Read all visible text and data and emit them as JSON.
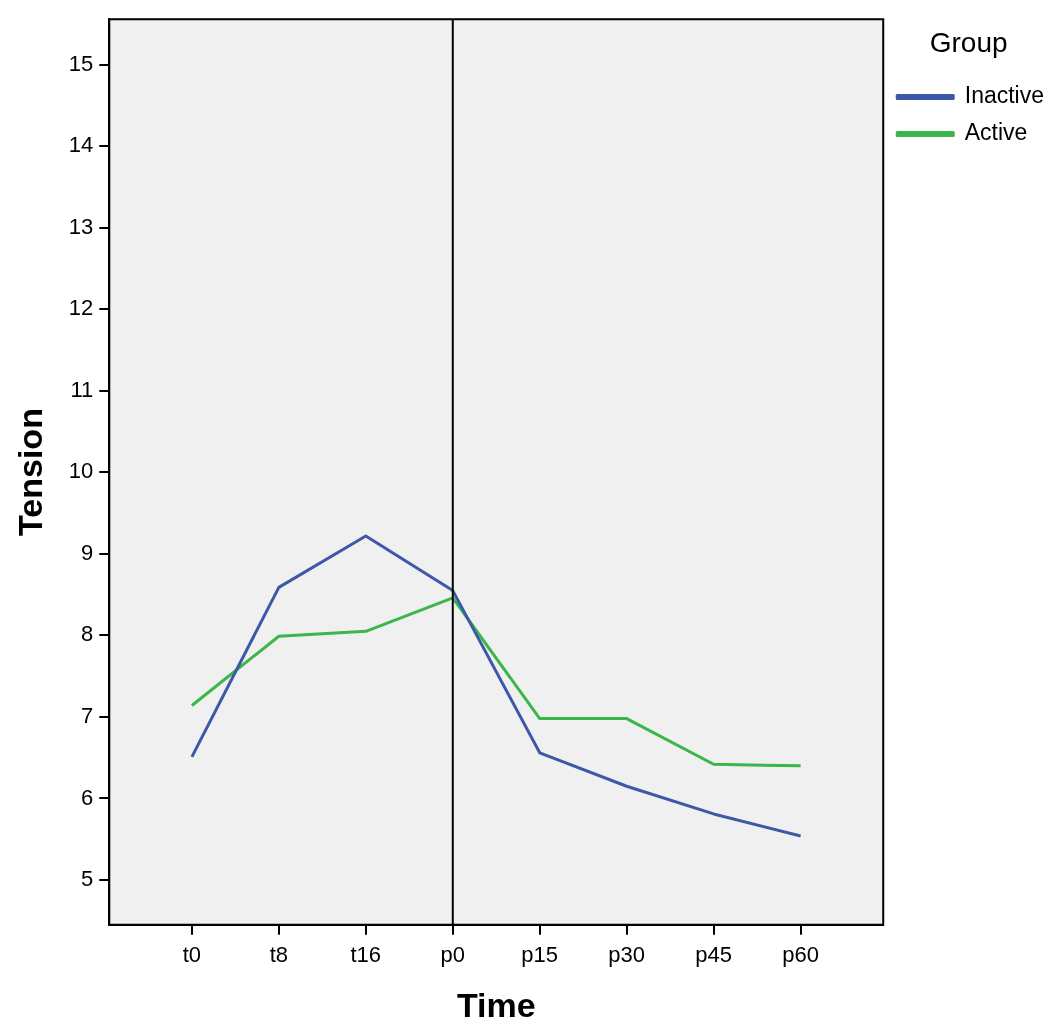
{
  "chart_data": {
    "type": "line",
    "xlabel": "Time",
    "ylabel": "Tension",
    "legend_title": "Group",
    "legend": "top right",
    "grid": false,
    "marker": "none",
    "line_style": "solid",
    "categories": [
      "t0",
      "t8",
      "t16",
      "p0",
      "p15",
      "p30",
      "p45",
      "p60"
    ],
    "ylim": [
      4.45,
      15.56
    ],
    "yticks": [
      5,
      6,
      7,
      8,
      9,
      10,
      11,
      12,
      13,
      14,
      15
    ],
    "ref_lines": [
      {
        "axis": "x",
        "value": "p0",
        "color": "#000000"
      }
    ],
    "series": [
      {
        "name": "Inactive",
        "color": "#3e58a8",
        "values": [
          6.51,
          8.59,
          9.22,
          8.55,
          6.56,
          6.15,
          5.81,
          5.54
        ]
      },
      {
        "name": "Active",
        "color": "#3cb54a",
        "values": [
          7.14,
          7.99,
          8.05,
          8.46,
          6.98,
          6.98,
          6.42,
          6.4
        ]
      }
    ]
  }
}
